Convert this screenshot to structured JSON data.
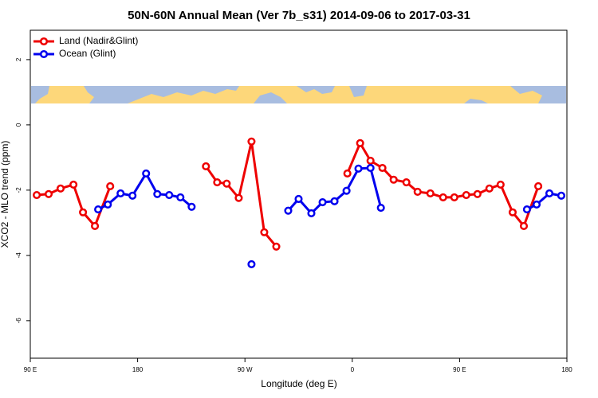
{
  "chart_data": {
    "type": "line",
    "title": "50N-60N Annual Mean (Ver 7b_s31)   2014-09-06 to 2017-03-31",
    "xlabel": "Longitude (deg E)",
    "ylabel": "XCO2 - MLO trend (ppm)",
    "xlim": [
      90,
      540
    ],
    "ylim": [
      -7.15,
      2.9
    ],
    "xticks": [
      {
        "value": 90,
        "label": "90 E"
      },
      180,
      {
        "value": 270,
        "label": "90 W"
      },
      {
        "value": 360,
        "label": "0"
      },
      {
        "value": 450,
        "label": "90 E"
      },
      {
        "value": 540,
        "label": "180"
      }
    ],
    "yticks": [
      2,
      0,
      -2,
      -4,
      -6
    ],
    "legend": "top-left",
    "series": [
      {
        "name": "Land (Nadir&Glint)",
        "color": "#ee0000",
        "x": [
          95.4,
          105.4,
          115.4,
          126.2,
          134.2,
          144.2,
          157.0,
          null,
          237.3,
          246.7,
          254.7,
          264.8,
          275.5,
          286.2,
          296.3,
          null,
          355.9,
          366.6,
          375.3,
          385.3,
          394.7,
          405.4,
          414.8,
          425.5,
          436.2,
          445.6,
          455.6,
          465.0,
          475.0,
          484.4,
          494.5,
          503.9,
          516.0
        ],
        "values": [
          -2.15,
          -2.12,
          -1.95,
          -1.83,
          -2.68,
          -3.1,
          -1.88,
          null,
          -1.27,
          -1.76,
          -1.8,
          -2.24,
          -0.51,
          -3.29,
          -3.73,
          null,
          -1.49,
          -0.56,
          -1.1,
          -1.32,
          -1.68,
          -1.76,
          -2.05,
          -2.1,
          -2.22,
          -2.22,
          -2.15,
          -2.12,
          -1.95,
          -1.83,
          -2.68,
          -3.1,
          -1.88
        ]
      },
      {
        "name": "Ocean (Glint)",
        "color": "#0000ee",
        "x": [
          146.9,
          155.0,
          165.7,
          175.7,
          187.1,
          196.5,
          206.5,
          215.9,
          225.3,
          null,
          275.5,
          null,
          306.3,
          315.0,
          325.7,
          335.1,
          345.1,
          355.2,
          365.2,
          375.3,
          384.0,
          null,
          506.5,
          514.6,
          525.3,
          535.3
        ],
        "values": [
          -2.59,
          -2.44,
          -2.1,
          -2.17,
          -1.49,
          -2.12,
          -2.15,
          -2.22,
          -2.51,
          null,
          -4.27,
          null,
          -2.63,
          -2.27,
          -2.71,
          -2.37,
          -2.34,
          -2.02,
          -1.34,
          -1.32,
          -2.54,
          null,
          -2.59,
          -2.44,
          -2.1,
          -2.17
        ]
      }
    ]
  }
}
